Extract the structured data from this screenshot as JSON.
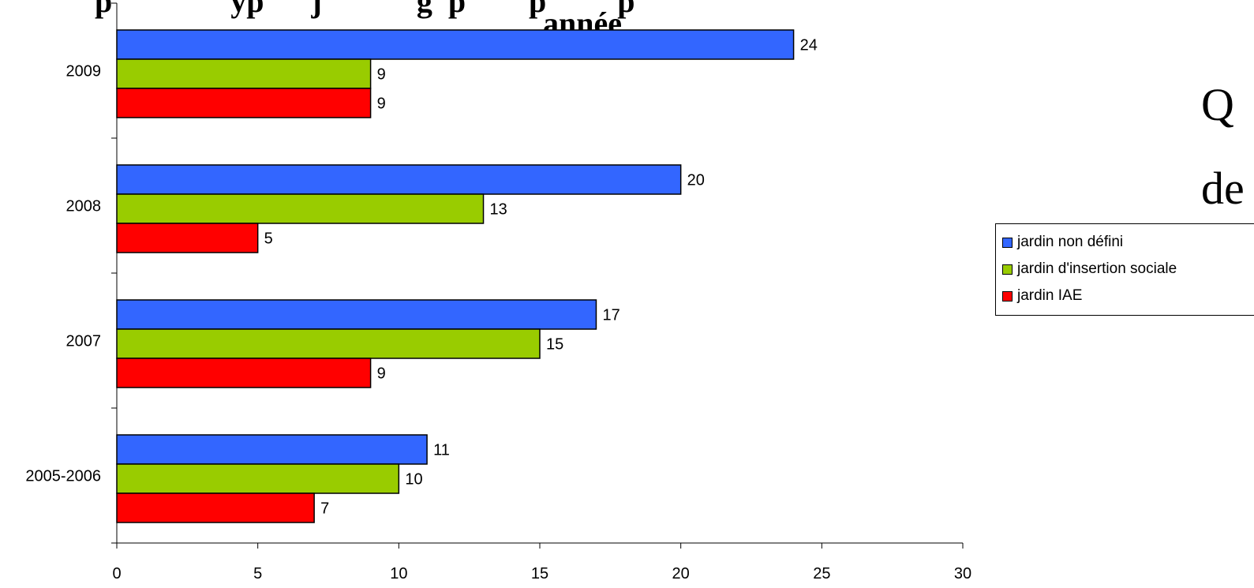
{
  "chart_data": {
    "type": "bar",
    "orientation": "horizontal",
    "title": "Répartition des types de jardins ... par année",
    "title_visible_line1": "p                          yp          j                       g  p             p              p",
    "title_visible_line2": "année",
    "categories": [
      "2009",
      "2008",
      "2007",
      "2005-2006"
    ],
    "series": [
      {
        "name": "jardin non défini",
        "color": "#3366ff",
        "values": [
          24,
          20,
          17,
          11
        ]
      },
      {
        "name": "jardin d'insertion sociale",
        "color": "#99cc00",
        "values": [
          9,
          13,
          15,
          10
        ]
      },
      {
        "name": "jardin IAE",
        "color": "#ff0000",
        "values": [
          9,
          5,
          9,
          7
        ]
      }
    ],
    "xlim": [
      0,
      30
    ],
    "xticks": [
      0,
      5,
      10,
      15,
      20,
      25,
      30
    ],
    "grid": false,
    "legend_position": "right"
  },
  "background_text": {
    "q": "Q",
    "de": "de"
  }
}
